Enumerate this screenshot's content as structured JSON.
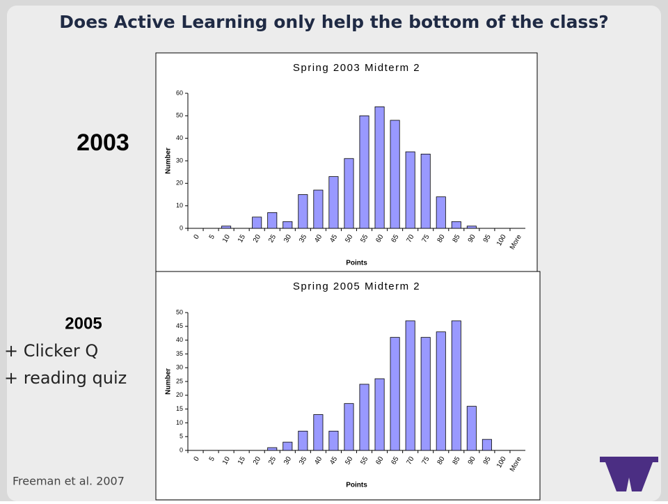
{
  "slide": {
    "title": "Does Active Learning only help the bottom of the class?",
    "label_2003": "2003",
    "label_2005": "2005",
    "note_1": "+ Clicker Q",
    "note_2": "+ reading quiz",
    "citation": "Freeman et al. 2007"
  },
  "chart_data": [
    {
      "type": "bar",
      "title": "Spring 2003 Midterm 2",
      "xlabel": "Points",
      "ylabel": "Number",
      "categories": [
        "0",
        "5",
        "10",
        "15",
        "20",
        "25",
        "30",
        "35",
        "40",
        "45",
        "50",
        "55",
        "60",
        "65",
        "70",
        "75",
        "80",
        "85",
        "90",
        "95",
        "100",
        "More"
      ],
      "values": [
        0,
        0,
        1,
        0,
        5,
        7,
        3,
        15,
        17,
        23,
        31,
        50,
        54,
        48,
        34,
        33,
        14,
        3,
        1,
        0,
        0,
        0
      ],
      "color": "#9999ff",
      "ylim": [
        0,
        60
      ],
      "yticks": [
        0,
        10,
        20,
        30,
        40,
        50,
        60
      ]
    },
    {
      "type": "bar",
      "title": "Spring 2005 Midterm 2",
      "xlabel": "Points",
      "ylabel": "Number",
      "categories": [
        "0",
        "5",
        "10",
        "15",
        "20",
        "25",
        "30",
        "35",
        "40",
        "45",
        "50",
        "55",
        "60",
        "65",
        "70",
        "75",
        "80",
        "85",
        "90",
        "95",
        "100",
        "More"
      ],
      "values": [
        0,
        0,
        0,
        0,
        0,
        1,
        3,
        7,
        13,
        7,
        17,
        24,
        26,
        41,
        47,
        41,
        43,
        47,
        16,
        4,
        0,
        0
      ],
      "color": "#9999ff",
      "ylim": [
        0,
        50
      ],
      "yticks": [
        0,
        5,
        10,
        15,
        20,
        25,
        30,
        35,
        40,
        45,
        50
      ]
    }
  ]
}
